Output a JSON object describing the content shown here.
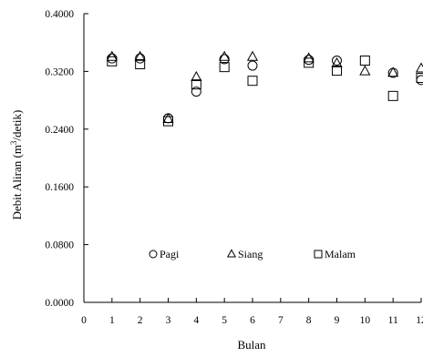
{
  "chart_data": {
    "type": "scatter",
    "title": "",
    "xlabel": "Bulan",
    "ylabel_main": "Debit Aliran (m",
    "ylabel_sup": "3",
    "ylabel_end": "/detik)",
    "xlim": [
      0,
      12
    ],
    "ylim": [
      0.0,
      0.4
    ],
    "x_ticks": [
      0,
      1,
      2,
      3,
      4,
      5,
      6,
      7,
      8,
      9,
      10,
      11,
      12
    ],
    "x_tick_labels": [
      "0",
      "1",
      "2",
      "3",
      "4",
      "5",
      "6",
      "7",
      "8",
      "9",
      "10",
      "11",
      "12"
    ],
    "y_ticks": [
      0.0,
      0.08,
      0.16,
      0.24,
      0.32,
      0.4
    ],
    "y_tick_labels": [
      "0.0000",
      "0.0800",
      "0.1600",
      "0.2400",
      "0.3200",
      "0.4000"
    ],
    "grid": false,
    "legend_position": "bottom-center inside plot",
    "series": [
      {
        "name": "Pagi",
        "marker": "circle",
        "x": [
          1,
          2,
          3,
          4,
          5,
          6,
          8,
          9,
          10,
          11,
          12
        ],
        "y": [
          0.338,
          0.338,
          0.255,
          0.292,
          0.337,
          0.328,
          0.336,
          0.335,
          null,
          0.318,
          0.308
        ]
      },
      {
        "name": "Siang",
        "marker": "triangle",
        "x": [
          1,
          2,
          3,
          4,
          5,
          6,
          8,
          9,
          10,
          11,
          12
        ],
        "y": [
          0.34,
          0.34,
          0.254,
          0.312,
          0.34,
          0.34,
          0.338,
          0.331,
          0.32,
          0.318,
          0.324
        ]
      },
      {
        "name": "Malam",
        "marker": "square",
        "x": [
          1,
          2,
          3,
          4,
          5,
          6,
          8,
          9,
          10,
          11,
          12
        ],
        "y": [
          0.334,
          0.33,
          0.251,
          0.302,
          0.326,
          0.307,
          0.332,
          0.321,
          0.335,
          0.286,
          0.311
        ]
      }
    ]
  }
}
